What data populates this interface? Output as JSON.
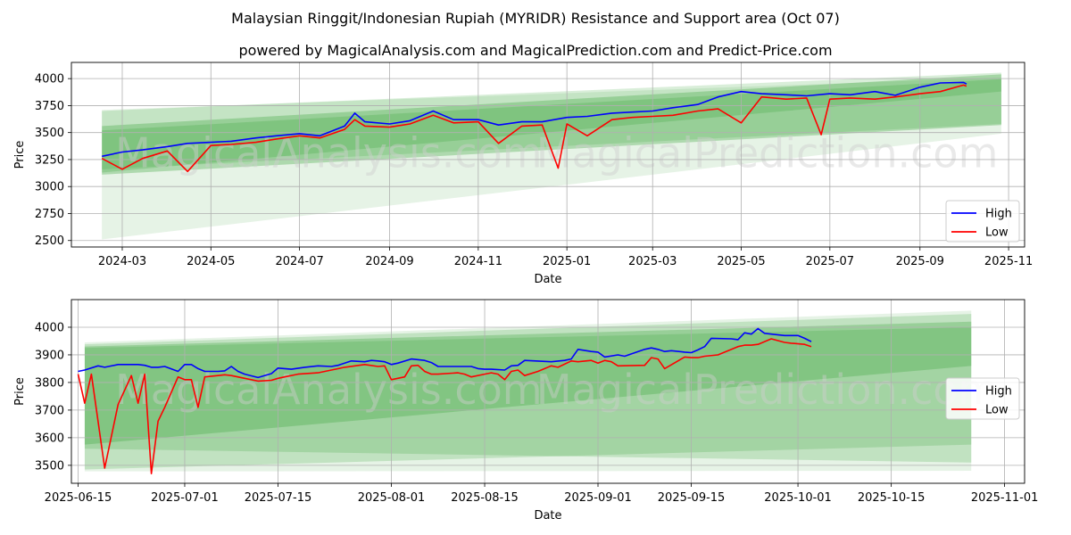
{
  "title_line1": "Malaysian Ringgit/Indonesian Rupiah (MYRIDR) Resistance and Support area (Oct 07)",
  "title_line2": "powered by MagicalAnalysis.com and MagicalPrediction.com and Predict-Price.com",
  "watermarks": [
    "MagicalAnalysis.com",
    "MagicalPrediction.com"
  ],
  "colors": {
    "high": "#0000ff",
    "low": "#ff0000",
    "band": "#2e9e2e"
  },
  "chart_data": [
    {
      "type": "line",
      "xlabel": "Date",
      "ylabel": "Price",
      "x_ticks": [
        "2024-03",
        "2024-05",
        "2024-07",
        "2024-09",
        "2024-11",
        "2025-01",
        "2025-03",
        "2025-05",
        "2025-07",
        "2025-09",
        "2025-11"
      ],
      "y_ticks": [
        2500,
        2750,
        3000,
        3250,
        3500,
        3750,
        4000
      ],
      "xlim": [
        "2024-01-26",
        "2025-11-12"
      ],
      "ylim": [
        2440,
        4150
      ],
      "grid": true,
      "legend": "lower-right",
      "series": [
        {
          "name": "High",
          "x": [
            "2024-02-16",
            "2024-03-01",
            "2024-03-15",
            "2024-04-01",
            "2024-04-15",
            "2024-05-01",
            "2024-05-15",
            "2024-06-01",
            "2024-06-15",
            "2024-07-01",
            "2024-07-15",
            "2024-08-01",
            "2024-08-08",
            "2024-08-15",
            "2024-09-01",
            "2024-09-15",
            "2024-10-01",
            "2024-10-15",
            "2024-11-01",
            "2024-11-15",
            "2024-12-01",
            "2024-12-15",
            "2025-01-01",
            "2025-01-15",
            "2025-02-01",
            "2025-02-15",
            "2025-03-01",
            "2025-03-15",
            "2025-04-01",
            "2025-04-15",
            "2025-05-01",
            "2025-05-15",
            "2025-06-01",
            "2025-06-15",
            "2025-07-01",
            "2025-07-15",
            "2025-08-01",
            "2025-08-15",
            "2025-09-01",
            "2025-09-15",
            "2025-10-01",
            "2025-10-03"
          ],
          "values": [
            3280,
            3320,
            3340,
            3370,
            3400,
            3410,
            3420,
            3450,
            3470,
            3490,
            3470,
            3560,
            3680,
            3600,
            3580,
            3610,
            3700,
            3620,
            3620,
            3570,
            3600,
            3600,
            3640,
            3650,
            3680,
            3690,
            3700,
            3730,
            3760,
            3830,
            3880,
            3860,
            3850,
            3840,
            3860,
            3850,
            3880,
            3845,
            3920,
            3960,
            3965,
            3950
          ]
        },
        {
          "name": "Low",
          "x": [
            "2024-02-16",
            "2024-03-01",
            "2024-03-15",
            "2024-04-01",
            "2024-04-15",
            "2024-05-01",
            "2024-05-15",
            "2024-06-01",
            "2024-06-15",
            "2024-07-01",
            "2024-07-15",
            "2024-08-01",
            "2024-08-08",
            "2024-08-15",
            "2024-09-01",
            "2024-09-15",
            "2024-10-01",
            "2024-10-15",
            "2024-11-01",
            "2024-11-15",
            "2024-12-01",
            "2024-12-15",
            "2024-12-26",
            "2025-01-01",
            "2025-01-15",
            "2025-02-01",
            "2025-02-15",
            "2025-03-01",
            "2025-03-15",
            "2025-04-01",
            "2025-04-15",
            "2025-05-01",
            "2025-05-15",
            "2025-06-01",
            "2025-06-15",
            "2025-06-25",
            "2025-07-01",
            "2025-07-15",
            "2025-08-01",
            "2025-08-15",
            "2025-09-01",
            "2025-09-15",
            "2025-10-01",
            "2025-10-03"
          ],
          "values": [
            3260,
            3160,
            3260,
            3330,
            3140,
            3380,
            3390,
            3410,
            3440,
            3470,
            3450,
            3530,
            3620,
            3560,
            3550,
            3580,
            3660,
            3590,
            3600,
            3400,
            3560,
            3570,
            3170,
            3580,
            3470,
            3620,
            3640,
            3650,
            3660,
            3700,
            3720,
            3590,
            3830,
            3810,
            3820,
            3480,
            3810,
            3820,
            3810,
            3830,
            3860,
            3880,
            3940,
            3930
          ]
        }
      ],
      "bands": [
        {
          "x": [
            "2024-02-16",
            "2025-10-27"
          ],
          "upper": [
            3710,
            4010
          ],
          "lower": [
            2510,
            3490
          ],
          "opacity": 0.12
        },
        {
          "x": [
            "2024-02-16",
            "2025-10-27"
          ],
          "upper": [
            3700,
            4055
          ],
          "lower": [
            3160,
            3580
          ],
          "opacity": 0.18
        },
        {
          "x": [
            "2024-02-16",
            "2025-10-27"
          ],
          "upper": [
            3560,
            4040
          ],
          "lower": [
            3110,
            3570
          ],
          "opacity": 0.3
        },
        {
          "x": [
            "2024-02-16",
            "2025-10-27"
          ],
          "upper": [
            3520,
            3995
          ],
          "lower": [
            3130,
            3880
          ],
          "opacity": 0.22
        }
      ]
    },
    {
      "type": "line",
      "xlabel": "Date",
      "ylabel": "Price",
      "x_ticks": [
        "2025-06-15",
        "2025-07-01",
        "2025-07-15",
        "2025-08-01",
        "2025-08-15",
        "2025-09-01",
        "2025-09-15",
        "2025-10-01",
        "2025-10-15",
        "2025-11-01"
      ],
      "y_ticks": [
        3500,
        3600,
        3700,
        3800,
        3900,
        4000
      ],
      "xlim": [
        "2025-06-14",
        "2025-11-04"
      ],
      "ylim": [
        3435,
        4100
      ],
      "grid": true,
      "legend": "center-right",
      "series": [
        {
          "name": "High",
          "x": [
            "2025-06-15",
            "2025-06-16",
            "2025-06-18",
            "2025-06-19",
            "2025-06-21",
            "2025-06-23",
            "2025-06-24",
            "2025-06-25",
            "2025-06-26",
            "2025-06-27",
            "2025-06-28",
            "2025-06-30",
            "2025-07-01",
            "2025-07-02",
            "2025-07-03",
            "2025-07-04",
            "2025-07-06",
            "2025-07-07",
            "2025-07-08",
            "2025-07-09",
            "2025-07-10",
            "2025-07-12",
            "2025-07-14",
            "2025-07-15",
            "2025-07-16",
            "2025-07-17",
            "2025-07-19",
            "2025-07-21",
            "2025-07-23",
            "2025-07-24",
            "2025-07-26",
            "2025-07-28",
            "2025-07-29",
            "2025-07-30",
            "2025-07-31",
            "2025-08-01",
            "2025-08-02",
            "2025-08-04",
            "2025-08-06",
            "2025-08-07",
            "2025-08-08",
            "2025-08-09",
            "2025-08-11",
            "2025-08-13",
            "2025-08-14",
            "2025-08-15",
            "2025-08-16",
            "2025-08-18",
            "2025-08-19",
            "2025-08-20",
            "2025-08-21",
            "2025-08-25",
            "2025-08-27",
            "2025-08-28",
            "2025-08-29",
            "2025-08-31",
            "2025-09-01",
            "2025-09-02",
            "2025-09-04",
            "2025-09-05",
            "2025-09-08",
            "2025-09-09",
            "2025-09-10",
            "2025-09-11",
            "2025-09-12",
            "2025-09-14",
            "2025-09-15",
            "2025-09-16",
            "2025-09-17",
            "2025-09-18",
            "2025-09-21",
            "2025-09-22",
            "2025-09-23",
            "2025-09-24",
            "2025-09-25",
            "2025-09-26",
            "2025-09-27",
            "2025-09-29",
            "2025-10-01",
            "2025-10-02",
            "2025-10-03"
          ],
          "values": [
            3840,
            3845,
            3860,
            3855,
            3865,
            3865,
            3865,
            3862,
            3855,
            3855,
            3858,
            3840,
            3865,
            3865,
            3850,
            3840,
            3840,
            3842,
            3858,
            3840,
            3830,
            3818,
            3832,
            3852,
            3850,
            3848,
            3855,
            3860,
            3858,
            3862,
            3878,
            3875,
            3880,
            3878,
            3875,
            3865,
            3870,
            3885,
            3880,
            3872,
            3858,
            3858,
            3858,
            3858,
            3850,
            3848,
            3848,
            3845,
            3860,
            3862,
            3880,
            3875,
            3880,
            3885,
            3920,
            3912,
            3910,
            3892,
            3900,
            3895,
            3920,
            3925,
            3920,
            3912,
            3915,
            3910,
            3908,
            3918,
            3930,
            3960,
            3958,
            3955,
            3980,
            3975,
            3995,
            3978,
            3975,
            3970,
            3970,
            3960,
            3948
          ]
        },
        {
          "name": "Low",
          "x": [
            "2025-06-15",
            "2025-06-16",
            "2025-06-17",
            "2025-06-19",
            "2025-06-21",
            "2025-06-23",
            "2025-06-24",
            "2025-06-25",
            "2025-06-26",
            "2025-06-27",
            "2025-06-28",
            "2025-06-30",
            "2025-07-01",
            "2025-07-02",
            "2025-07-03",
            "2025-07-04",
            "2025-07-06",
            "2025-07-07",
            "2025-07-08",
            "2025-07-10",
            "2025-07-12",
            "2025-07-14",
            "2025-07-15",
            "2025-07-16",
            "2025-07-18",
            "2025-07-21",
            "2025-07-23",
            "2025-07-25",
            "2025-07-28",
            "2025-07-30",
            "2025-07-31",
            "2025-08-01",
            "2025-08-03",
            "2025-08-04",
            "2025-08-05",
            "2025-08-06",
            "2025-08-07",
            "2025-08-08",
            "2025-08-11",
            "2025-08-12",
            "2025-08-13",
            "2025-08-15",
            "2025-08-16",
            "2025-08-17",
            "2025-08-18",
            "2025-08-19",
            "2025-08-20",
            "2025-08-21",
            "2025-08-23",
            "2025-08-25",
            "2025-08-26",
            "2025-08-28",
            "2025-08-29",
            "2025-08-31",
            "2025-09-01",
            "2025-09-02",
            "2025-09-03",
            "2025-09-04",
            "2025-09-08",
            "2025-09-09",
            "2025-09-10",
            "2025-09-11",
            "2025-09-14",
            "2025-09-15",
            "2025-09-16",
            "2025-09-17",
            "2025-09-19",
            "2025-09-22",
            "2025-09-23",
            "2025-09-24",
            "2025-09-25",
            "2025-09-27",
            "2025-09-29",
            "2025-09-30",
            "2025-10-02",
            "2025-10-03"
          ],
          "values": [
            3830,
            3725,
            3830,
            3490,
            3720,
            3825,
            3725,
            3830,
            3470,
            3660,
            3710,
            3820,
            3810,
            3810,
            3710,
            3820,
            3825,
            3828,
            3825,
            3815,
            3805,
            3808,
            3815,
            3820,
            3830,
            3835,
            3845,
            3855,
            3865,
            3858,
            3860,
            3810,
            3820,
            3860,
            3862,
            3840,
            3830,
            3830,
            3835,
            3830,
            3820,
            3830,
            3835,
            3830,
            3810,
            3840,
            3845,
            3825,
            3840,
            3860,
            3855,
            3878,
            3875,
            3880,
            3870,
            3880,
            3875,
            3860,
            3862,
            3890,
            3885,
            3850,
            3892,
            3890,
            3890,
            3895,
            3900,
            3930,
            3935,
            3935,
            3938,
            3958,
            3945,
            3942,
            3938,
            3930
          ]
        }
      ],
      "bands": [
        {
          "x": [
            "2025-06-16",
            "2025-10-27"
          ],
          "upper": [
            3945,
            4060
          ],
          "lower": [
            3478,
            3480
          ],
          "opacity": 0.12
        },
        {
          "x": [
            "2025-06-16",
            "2025-10-27"
          ],
          "upper": [
            3938,
            4048
          ],
          "lower": [
            3485,
            3575
          ],
          "opacity": 0.2
        },
        {
          "x": [
            "2025-06-16",
            "2025-10-27"
          ],
          "upper": [
            3930,
            4020
          ],
          "lower": [
            3575,
            3860
          ],
          "opacity": 0.28
        },
        {
          "x": [
            "2025-06-16",
            "2025-10-27"
          ],
          "upper": [
            3925,
            4000
          ],
          "lower": [
            3560,
            3510
          ],
          "opacity": 0.2
        }
      ]
    }
  ]
}
